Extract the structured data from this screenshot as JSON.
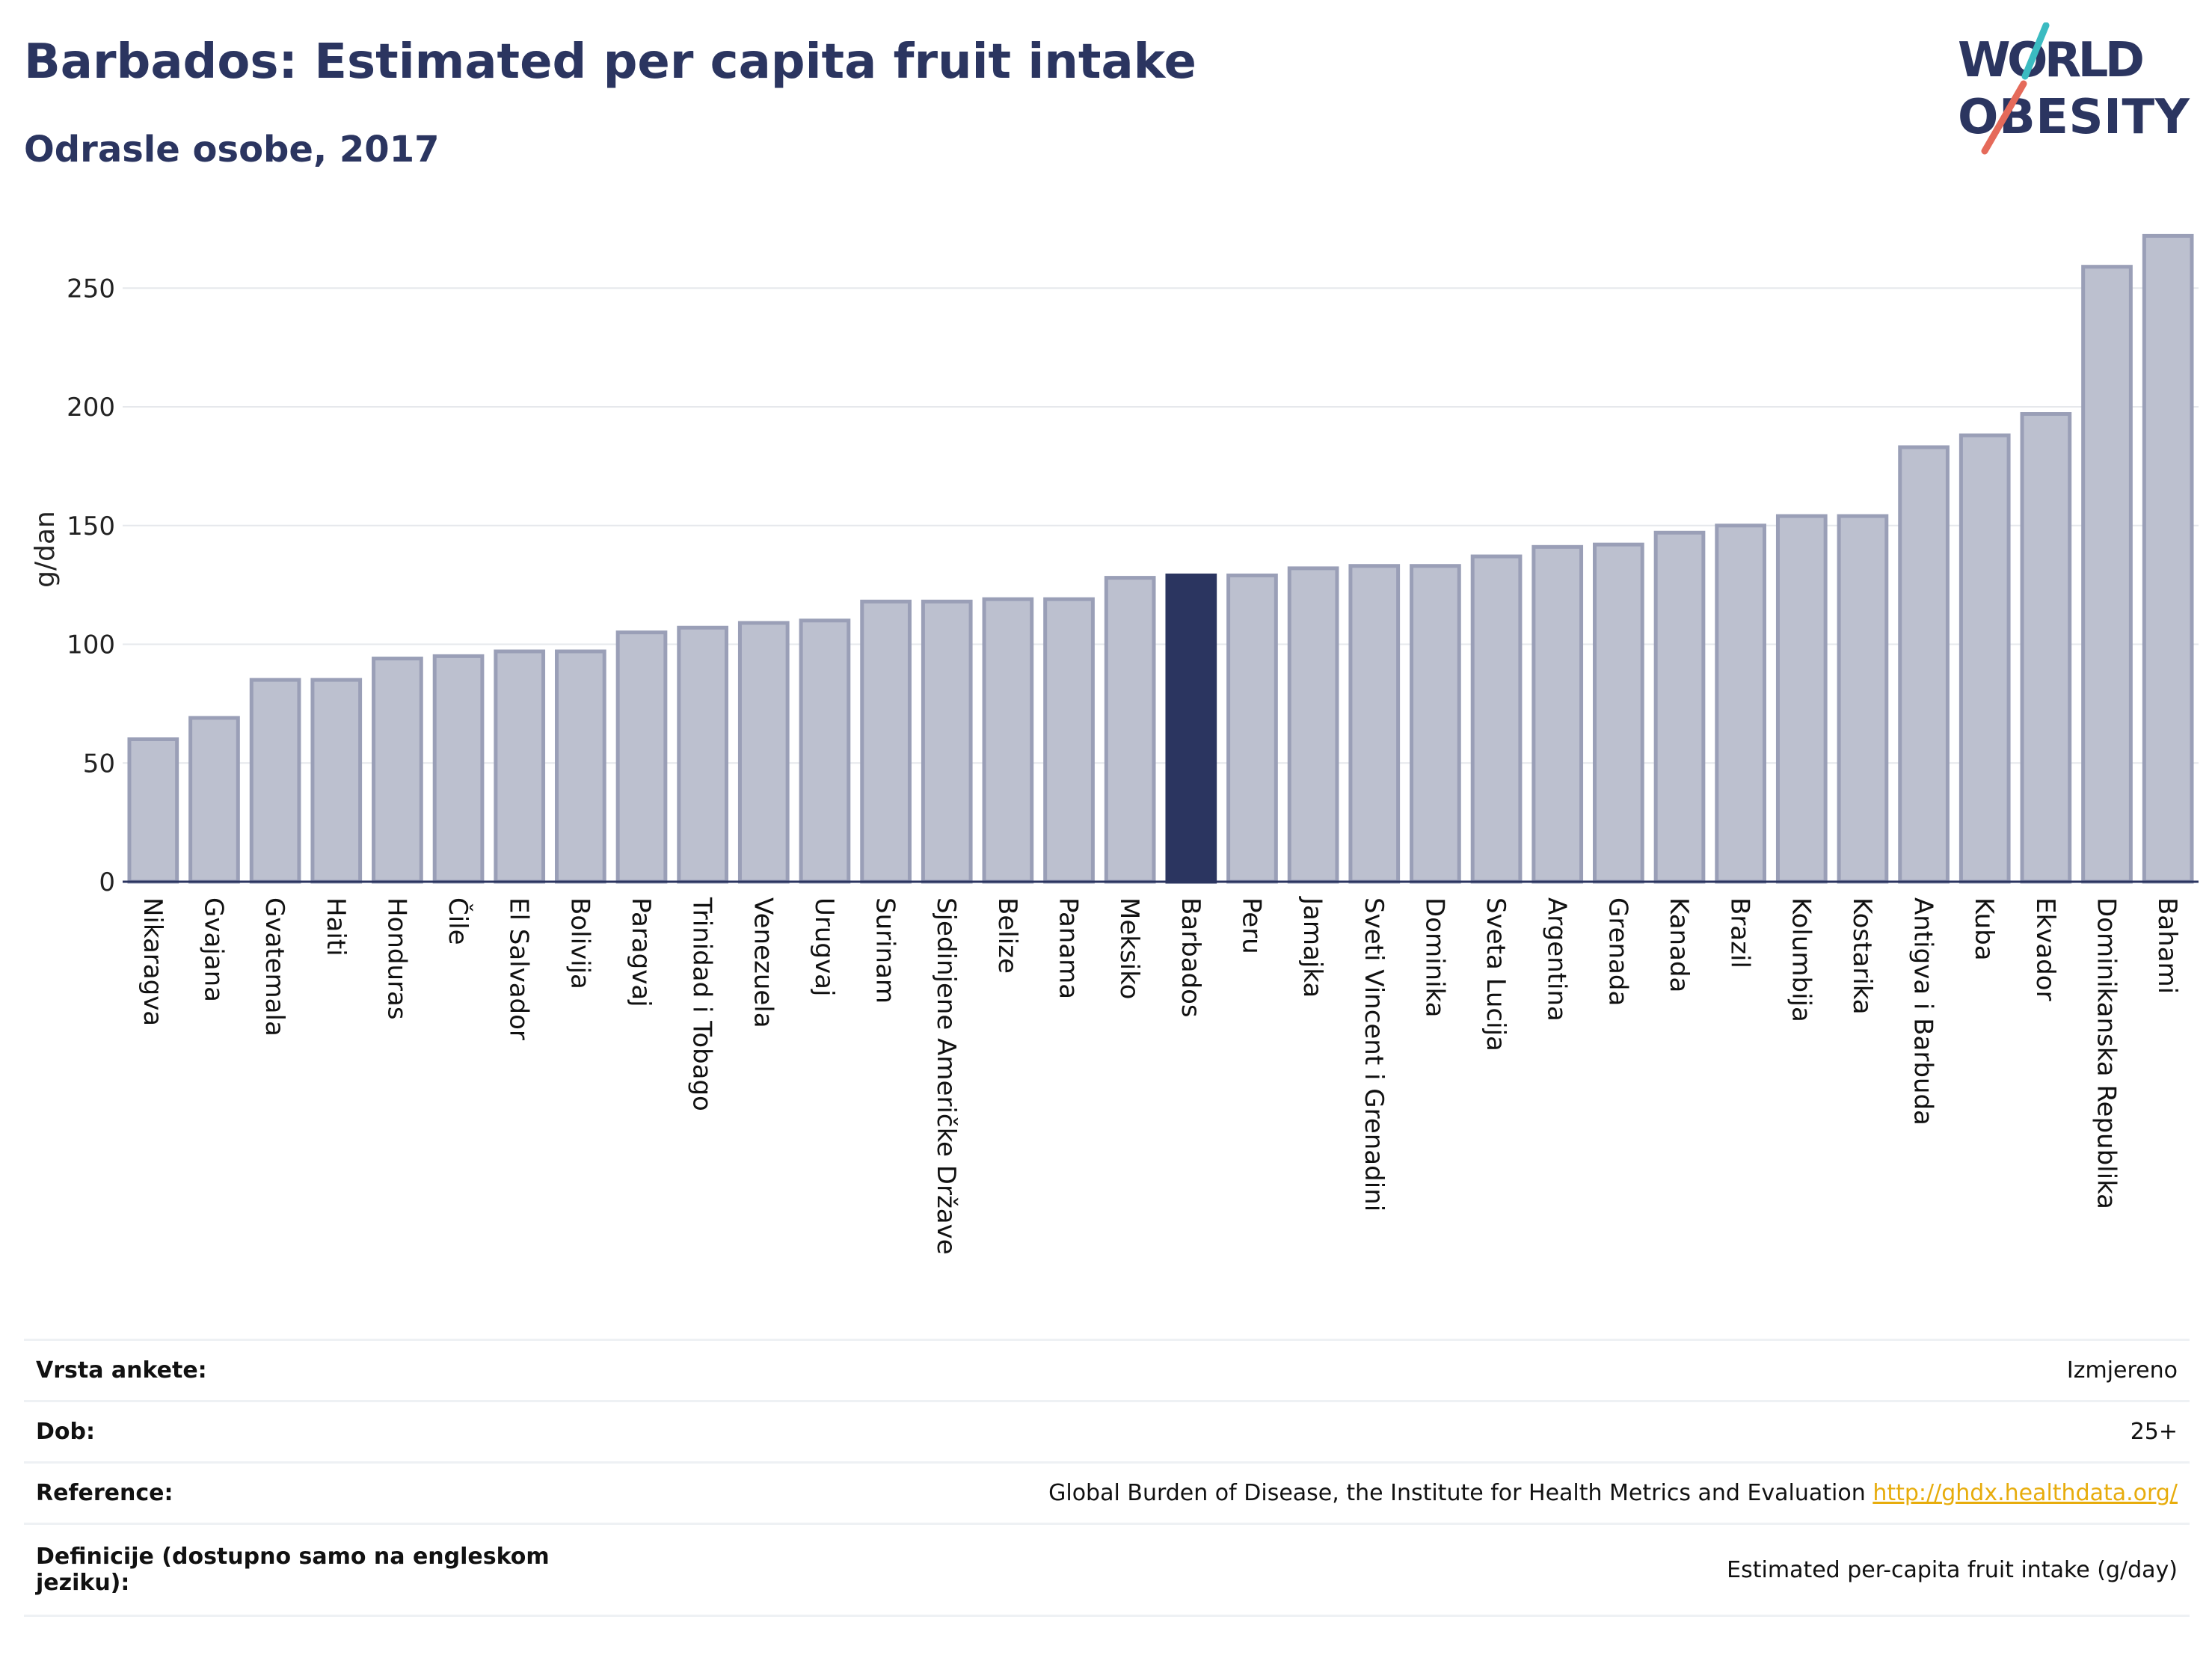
{
  "title": "Barbados: Estimated per capita fruit intake",
  "subtitle": "Odrasle osobe, 2017",
  "logo": {
    "line1": "WORLD",
    "line2": "OBESITY"
  },
  "colors": {
    "title": "#2b3560",
    "bar": "#bcc0cf",
    "bar_border": "#9a9fb7",
    "highlight": "#2b3560",
    "link": "#e7ac0c"
  },
  "chart_data": {
    "type": "bar",
    "ylabel": "g/dan",
    "xlabel": "",
    "ylim": [
      0,
      280
    ],
    "yticks": [
      0,
      50,
      100,
      150,
      200,
      250
    ],
    "grid": true,
    "highlight": "Barbados",
    "categories": [
      "Nikaragva",
      "Gvajana",
      "Gvatemala",
      "Haiti",
      "Honduras",
      "Čile",
      "El Salvador",
      "Bolivija",
      "Paragvaj",
      "Trinidad i Tobago",
      "Venezuela",
      "Urugvaj",
      "Surinam",
      "Sjedinjene Američke Države",
      "Belize",
      "Panama",
      "Meksiko",
      "Barbados",
      "Peru",
      "Jamajka",
      "Sveti Vincent i Grenadini",
      "Dominika",
      "Sveta Lucija",
      "Argentina",
      "Grenada",
      "Kanada",
      "Brazil",
      "Kolumbija",
      "Kostarika",
      "Antigva i Barbuda",
      "Kuba",
      "Ekvador",
      "Dominikanska Republika",
      "Bahami"
    ],
    "values": [
      60,
      69,
      85,
      85,
      94,
      95,
      97,
      97,
      105,
      107,
      109,
      110,
      118,
      118,
      119,
      119,
      128,
      129,
      129,
      132,
      133,
      133,
      137,
      141,
      142,
      147,
      150,
      154,
      154,
      183,
      188,
      197,
      259,
      272
    ]
  },
  "info": {
    "rows": [
      {
        "key": "Vrsta ankete:",
        "value": "Izmjereno"
      },
      {
        "key": "Dob:",
        "value": "25+"
      },
      {
        "key": "Reference:",
        "value": "Global Burden of Disease, the Institute for Health Metrics and Evaluation",
        "link": "http://ghdx.healthdata.org/"
      },
      {
        "key": "Definicije (dostupno samo na engleskom jeziku):",
        "value": "Estimated per-capita fruit intake (g/day)"
      }
    ]
  }
}
